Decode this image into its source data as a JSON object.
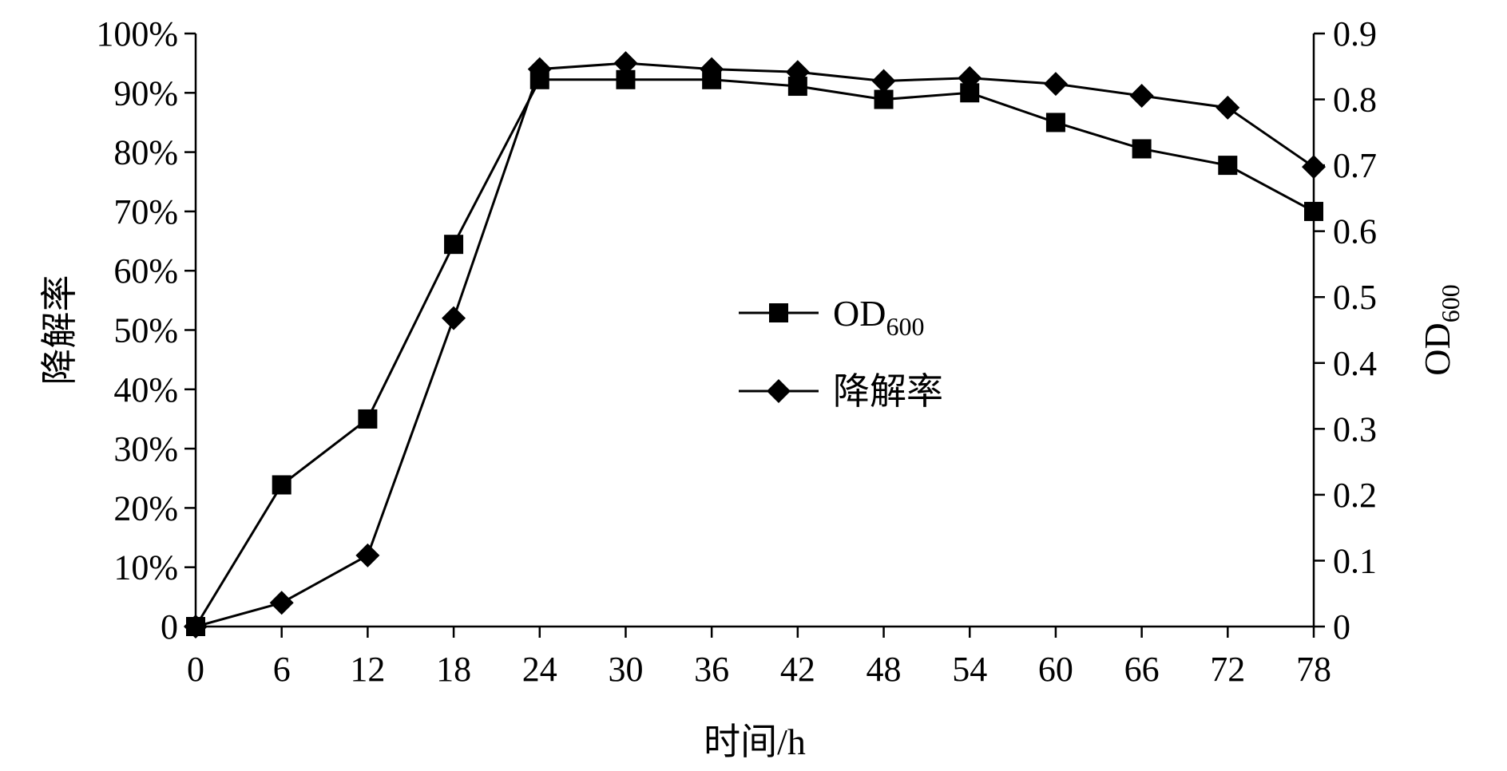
{
  "chart_data": {
    "type": "line",
    "xlabel": "时间/h",
    "ylabel_left": "降解率",
    "ylabel_right": {
      "main": "OD",
      "sub": "600"
    },
    "x": [
      0,
      6,
      12,
      18,
      24,
      30,
      36,
      42,
      48,
      54,
      60,
      66,
      72,
      78
    ],
    "x_ticks": [
      "0",
      "6",
      "12",
      "18",
      "24",
      "30",
      "36",
      "42",
      "48",
      "54",
      "60",
      "66",
      "72",
      "78"
    ],
    "y_left_ticks": [
      "0",
      "10%",
      "20%",
      "30%",
      "40%",
      "50%",
      "60%",
      "70%",
      "80%",
      "90%",
      "100%"
    ],
    "y_right_ticks": [
      "0",
      "0.1",
      "0.2",
      "0.3",
      "0.4",
      "0.5",
      "0.6",
      "0.7",
      "0.8",
      "0.9"
    ],
    "ylim_left": [
      0,
      1.0
    ],
    "ylim_right": [
      0,
      0.9
    ],
    "grid": false,
    "legend_position": "center",
    "series": [
      {
        "name": "OD",
        "name_sub": "600",
        "axis": "right",
        "marker": "square",
        "values": [
          0.0,
          0.215,
          0.315,
          0.58,
          0.83,
          0.83,
          0.83,
          0.82,
          0.8,
          0.81,
          0.765,
          0.725,
          0.7,
          0.63
        ]
      },
      {
        "name": "降解率",
        "axis": "left",
        "marker": "diamond",
        "values": [
          0.0,
          0.04,
          0.12,
          0.52,
          0.94,
          0.95,
          0.94,
          0.935,
          0.92,
          0.925,
          0.915,
          0.895,
          0.875,
          0.775
        ]
      }
    ]
  }
}
